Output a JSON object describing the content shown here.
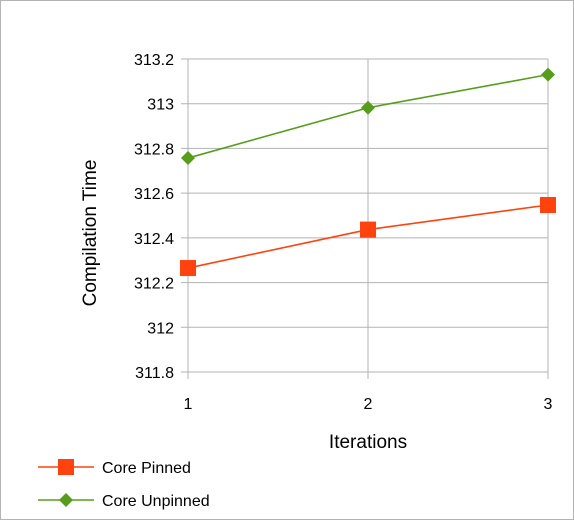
{
  "chart_data": {
    "type": "line",
    "x": [
      1,
      2,
      3
    ],
    "series": [
      {
        "name": "Core Pinned",
        "values": [
          312.265,
          312.437,
          312.547
        ],
        "color": "#ff420e",
        "marker": "square"
      },
      {
        "name": "Core Unpinned",
        "values": [
          312.757,
          312.982,
          313.13
        ],
        "color": "#579d1c",
        "marker": "diamond"
      }
    ],
    "xlabel": "Iterations",
    "ylabel": "Compilation Time",
    "xlim": [
      1,
      3
    ],
    "ylim": [
      311.8,
      313.2
    ],
    "x_ticks": [
      "1",
      "2",
      "3"
    ],
    "y_ticks": [
      "311.8",
      "312",
      "312.2",
      "312.4",
      "312.6",
      "312.8",
      "313",
      "313.2"
    ],
    "grid": true,
    "legend_position": "bottom-left"
  }
}
